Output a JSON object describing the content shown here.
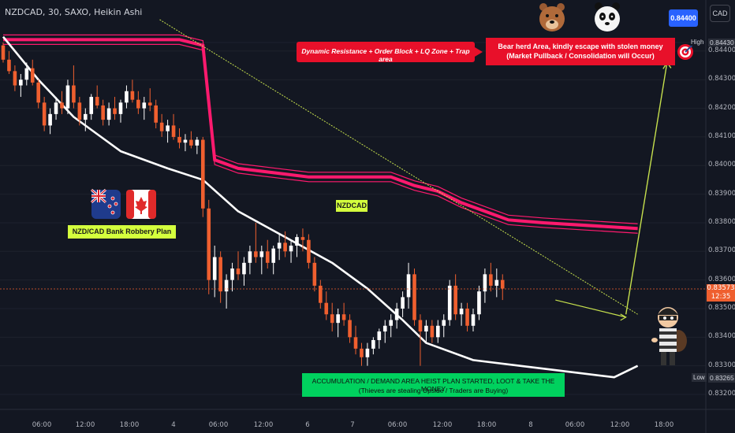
{
  "header": {
    "symbol_text": "NZDCAD, 30, SAXO, Heikin Ashi"
  },
  "currency_button": "CAD",
  "price_axis": {
    "ticks": [
      "0.84430",
      "0.84400",
      "0.84300",
      "0.84200",
      "0.84100",
      "0.84000",
      "0.83900",
      "0.83800",
      "0.83700",
      "0.83600",
      "0.83500",
      "0.83400",
      "0.83300",
      "0.83200"
    ],
    "tick_values": [
      0.8443,
      0.844,
      0.843,
      0.842,
      0.841,
      0.84,
      0.839,
      0.838,
      0.837,
      0.836,
      0.835,
      0.834,
      0.833,
      0.832
    ],
    "current_price": "0.83573",
    "countdown": "12:35",
    "high_label": "High",
    "high_value": "0.84430",
    "low_label": "Low",
    "low_value": "0.83265",
    "target_badge": "0.84400"
  },
  "time_axis": {
    "ticks": [
      "06:00",
      "12:00",
      "18:00",
      "4",
      "06:00",
      "12:00",
      "6",
      "7",
      "06:00",
      "12:00",
      "18:00",
      "8",
      "06:00",
      "12:00",
      "18:00"
    ]
  },
  "annotations": {
    "resistance_label": "Dynamic Resistance + Order Block + LQ Zone + Trap area",
    "bear_line1": "Bear herd Area, kindly escape with stolen money",
    "bear_line2": "(Market Pullback / Consolidation will Occur)",
    "pair_label": "NZDCAD",
    "plan_label": "NZD/CAD Bank Robbery Plan",
    "accumulation_line1": "ACCUMULATION / DEMAND AREA HEIST PLAN STARTED, LOOT & TAKE THE MONEY",
    "accumulation_line2": "(Thieves are stealing Upside / Traders are Buying)"
  },
  "colors": {
    "background": "#131722",
    "bull": "#ffffff",
    "bear": "#ef5f2f",
    "resistance": "#ff1a6e",
    "trend_line": "#c6e04d",
    "moving_average": "#ffffff",
    "resistance_box": "#e8102a",
    "accumulation_box": "#00d15e",
    "plan_box": "#d4ff3d",
    "target_badge": "#2962ff"
  },
  "chart_data": {
    "type": "candlestick",
    "ylim": [
      0.8317,
      0.8451
    ],
    "candles": [
      [
        0.8442,
        0.8443,
        0.8436,
        0.8437
      ],
      [
        0.8437,
        0.844,
        0.8432,
        0.8433
      ],
      [
        0.8433,
        0.8435,
        0.8426,
        0.8428
      ],
      [
        0.8428,
        0.8432,
        0.8424,
        0.843
      ],
      [
        0.843,
        0.8436,
        0.8428,
        0.8434
      ],
      [
        0.8434,
        0.8437,
        0.8428,
        0.8429
      ],
      [
        0.8429,
        0.843,
        0.842,
        0.8422
      ],
      [
        0.8422,
        0.8424,
        0.8412,
        0.8414
      ],
      [
        0.8414,
        0.842,
        0.8411,
        0.8418
      ],
      [
        0.8418,
        0.8424,
        0.8416,
        0.8422
      ],
      [
        0.8422,
        0.8426,
        0.8418,
        0.842
      ],
      [
        0.842,
        0.843,
        0.8418,
        0.8428
      ],
      [
        0.8428,
        0.8435,
        0.842,
        0.8422
      ],
      [
        0.8422,
        0.8424,
        0.8414,
        0.8416
      ],
      [
        0.8416,
        0.842,
        0.8412,
        0.8418
      ],
      [
        0.8418,
        0.8425,
        0.8416,
        0.8424
      ],
      [
        0.8424,
        0.8428,
        0.842,
        0.8421
      ],
      [
        0.8421,
        0.8423,
        0.8414,
        0.8416
      ],
      [
        0.8416,
        0.8422,
        0.8414,
        0.842
      ],
      [
        0.842,
        0.8424,
        0.8416,
        0.8418
      ],
      [
        0.8418,
        0.8423,
        0.8415,
        0.8422
      ],
      [
        0.8422,
        0.8428,
        0.842,
        0.8426
      ],
      [
        0.8426,
        0.843,
        0.8422,
        0.8423
      ],
      [
        0.8423,
        0.8426,
        0.8418,
        0.842
      ],
      [
        0.842,
        0.8424,
        0.8416,
        0.8422
      ],
      [
        0.8422,
        0.8427,
        0.8419,
        0.8421
      ],
      [
        0.8421,
        0.8423,
        0.8413,
        0.8415
      ],
      [
        0.8415,
        0.8418,
        0.841,
        0.8412
      ],
      [
        0.8412,
        0.8416,
        0.8408,
        0.8414
      ],
      [
        0.8414,
        0.8418,
        0.8409,
        0.841
      ],
      [
        0.841,
        0.8413,
        0.8406,
        0.8408
      ],
      [
        0.8408,
        0.8411,
        0.8405,
        0.8409
      ],
      [
        0.8409,
        0.8412,
        0.8406,
        0.8407
      ],
      [
        0.8407,
        0.841,
        0.8404,
        0.8409
      ],
      [
        0.8409,
        0.841,
        0.8382,
        0.8385
      ],
      [
        0.8385,
        0.8388,
        0.8355,
        0.836
      ],
      [
        0.836,
        0.8372,
        0.8354,
        0.8368
      ],
      [
        0.8368,
        0.837,
        0.8352,
        0.8356
      ],
      [
        0.8356,
        0.8362,
        0.835,
        0.836
      ],
      [
        0.836,
        0.8366,
        0.8356,
        0.8364
      ],
      [
        0.8364,
        0.837,
        0.836,
        0.8362
      ],
      [
        0.8362,
        0.8368,
        0.8358,
        0.8366
      ],
      [
        0.8366,
        0.8372,
        0.8362,
        0.837
      ],
      [
        0.837,
        0.838,
        0.8366,
        0.8368
      ],
      [
        0.8368,
        0.8372,
        0.8362,
        0.837
      ],
      [
        0.837,
        0.8374,
        0.8364,
        0.8366
      ],
      [
        0.8366,
        0.8372,
        0.8362,
        0.8371
      ],
      [
        0.8371,
        0.8376,
        0.8367,
        0.8373
      ],
      [
        0.8373,
        0.8377,
        0.8368,
        0.837
      ],
      [
        0.837,
        0.8374,
        0.8366,
        0.8372
      ],
      [
        0.8372,
        0.8376,
        0.8368,
        0.8375
      ],
      [
        0.8375,
        0.8378,
        0.837,
        0.8374
      ],
      [
        0.8374,
        0.8376,
        0.8364,
        0.8366
      ],
      [
        0.8366,
        0.8368,
        0.8356,
        0.8358
      ],
      [
        0.8358,
        0.836,
        0.835,
        0.8352
      ],
      [
        0.8352,
        0.8356,
        0.8346,
        0.8348
      ],
      [
        0.8348,
        0.8352,
        0.8342,
        0.8345
      ],
      [
        0.8345,
        0.835,
        0.834,
        0.8348
      ],
      [
        0.8348,
        0.8352,
        0.8344,
        0.8346
      ],
      [
        0.8346,
        0.8348,
        0.8338,
        0.834
      ],
      [
        0.834,
        0.8344,
        0.8334,
        0.8336
      ],
      [
        0.8336,
        0.8338,
        0.833,
        0.8333
      ],
      [
        0.8333,
        0.8338,
        0.833,
        0.8336
      ],
      [
        0.8336,
        0.834,
        0.8334,
        0.8339
      ],
      [
        0.8339,
        0.8343,
        0.8336,
        0.8342
      ],
      [
        0.8342,
        0.8346,
        0.8338,
        0.8344
      ],
      [
        0.8344,
        0.8348,
        0.834,
        0.8346
      ],
      [
        0.8346,
        0.8352,
        0.8343,
        0.835
      ],
      [
        0.835,
        0.8356,
        0.8347,
        0.8354
      ],
      [
        0.8354,
        0.8366,
        0.835,
        0.8362
      ],
      [
        0.8362,
        0.8364,
        0.8344,
        0.8346
      ],
      [
        0.8346,
        0.8348,
        0.833,
        0.8342
      ],
      [
        0.8342,
        0.8346,
        0.8338,
        0.8344
      ],
      [
        0.8344,
        0.8346,
        0.8338,
        0.834
      ],
      [
        0.834,
        0.8346,
        0.8338,
        0.8344
      ],
      [
        0.8344,
        0.8348,
        0.834,
        0.8346
      ],
      [
        0.8346,
        0.836,
        0.8344,
        0.8358
      ],
      [
        0.8358,
        0.8362,
        0.8346,
        0.8348
      ],
      [
        0.8348,
        0.8352,
        0.8344,
        0.835
      ],
      [
        0.835,
        0.8352,
        0.8342,
        0.8344
      ],
      [
        0.8344,
        0.835,
        0.8342,
        0.8348
      ],
      [
        0.8348,
        0.8358,
        0.8346,
        0.8356
      ],
      [
        0.8356,
        0.8364,
        0.8352,
        0.8362
      ],
      [
        0.8362,
        0.8366,
        0.8356,
        0.8358
      ],
      [
        0.8358,
        0.8364,
        0.8354,
        0.836
      ],
      [
        0.836,
        0.8362,
        0.8353,
        0.8357
      ]
    ],
    "resistance_band": [
      [
        0,
        0.8444
      ],
      [
        8,
        0.8444
      ],
      [
        30,
        0.8444
      ],
      [
        34,
        0.8442
      ],
      [
        36,
        0.8402
      ],
      [
        40,
        0.8399
      ],
      [
        48,
        0.8397
      ],
      [
        52,
        0.8396
      ],
      [
        66,
        0.8396
      ],
      [
        70,
        0.8393
      ],
      [
        74,
        0.8391
      ],
      [
        78,
        0.8387
      ],
      [
        82,
        0.8384
      ],
      [
        86,
        0.8381
      ],
      [
        92,
        0.838
      ],
      [
        108,
        0.8378
      ]
    ],
    "trend_line": [
      [
        30,
        0.8451
      ],
      [
        108,
        0.8348
      ]
    ],
    "moving_average": [
      [
        0,
        0.8445
      ],
      [
        6,
        0.843
      ],
      [
        12,
        0.8417
      ],
      [
        20,
        0.8405
      ],
      [
        28,
        0.8399
      ],
      [
        34,
        0.8395
      ],
      [
        40,
        0.8384
      ],
      [
        48,
        0.8375
      ],
      [
        56,
        0.8366
      ],
      [
        62,
        0.8357
      ],
      [
        68,
        0.8346
      ],
      [
        72,
        0.8338
      ],
      [
        80,
        0.8332
      ],
      [
        88,
        0.833
      ],
      [
        96,
        0.8328
      ],
      [
        104,
        0.8326
      ],
      [
        108,
        0.833
      ]
    ],
    "projection_arrow": [
      [
        106,
        0.8348
      ],
      [
        113,
        0.8436
      ]
    ],
    "price_at_projection": [
      [
        94,
        0.8353
      ],
      [
        106,
        0.8347
      ]
    ]
  }
}
